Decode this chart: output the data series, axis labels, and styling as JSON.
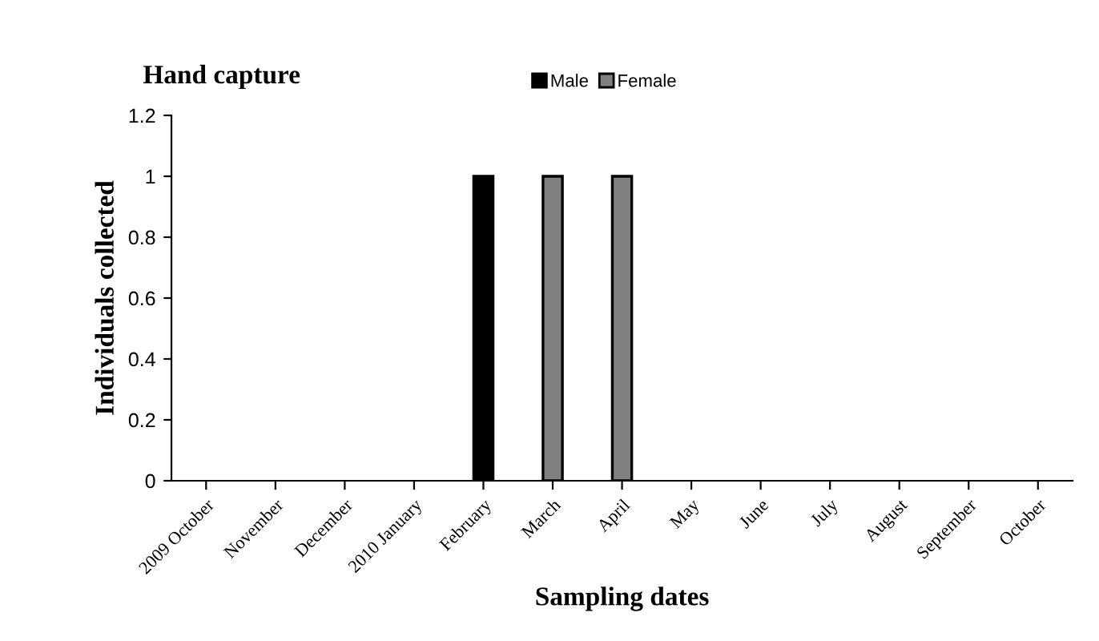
{
  "chart_data": {
    "type": "bar",
    "title": "Hand capture",
    "xlabel": "Sampling dates",
    "ylabel": "Individuals collected",
    "categories": [
      "2009 October",
      "November",
      "December",
      "2010 January",
      "February",
      "March",
      "April",
      "May",
      "June",
      "July",
      "August",
      "September",
      "October"
    ],
    "series": [
      {
        "name": "Male",
        "color": "#000000",
        "values": [
          0,
          0,
          0,
          0,
          1,
          0,
          0,
          0,
          0,
          0,
          0,
          0,
          0
        ]
      },
      {
        "name": "Female",
        "color": "#808080",
        "values": [
          0,
          0,
          0,
          0,
          0,
          1,
          1,
          0,
          0,
          0,
          0,
          0,
          0
        ]
      }
    ],
    "ylim": [
      0,
      1.2
    ],
    "yticks": [
      0,
      0.2,
      0.4,
      0.6,
      0.8,
      1,
      1.2
    ],
    "grid": false,
    "legend": "top"
  }
}
